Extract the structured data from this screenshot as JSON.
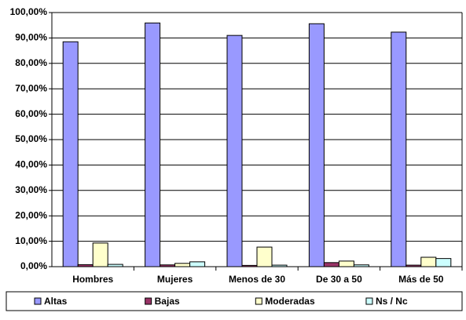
{
  "chart_data": {
    "type": "bar",
    "categories": [
      "Hombres",
      "Mujeres",
      "Menos de 30",
      "De 30 a 50",
      "Más de 50"
    ],
    "series": [
      {
        "name": "Altas",
        "color": "#9999ff",
        "values": [
          88.5,
          95.9,
          91.0,
          95.6,
          92.3
        ]
      },
      {
        "name": "Bajas",
        "color": "#993366",
        "values": [
          0.8,
          0.7,
          0.5,
          1.6,
          0.6
        ]
      },
      {
        "name": "Moderadas",
        "color": "#ffffcc",
        "values": [
          9.3,
          1.3,
          7.7,
          2.2,
          3.7
        ]
      },
      {
        "name": "Ns / Nc",
        "color": "#ccffff",
        "values": [
          0.9,
          1.9,
          0.6,
          0.7,
          3.2
        ]
      }
    ],
    "ylim": [
      0,
      100
    ],
    "yticks": [
      {
        "value": 0,
        "label": "0,00%"
      },
      {
        "value": 10,
        "label": "10,00%"
      },
      {
        "value": 20,
        "label": "20,00%"
      },
      {
        "value": 30,
        "label": "30,00%"
      },
      {
        "value": 40,
        "label": "40,00%"
      },
      {
        "value": 50,
        "label": "50,00%"
      },
      {
        "value": 60,
        "label": "60,00%"
      },
      {
        "value": 70,
        "label": "70,00%"
      },
      {
        "value": 80,
        "label": "80,00%"
      },
      {
        "value": 90,
        "label": "90,00%"
      },
      {
        "value": 100,
        "label": "100,00%"
      }
    ],
    "grid": true,
    "legend": "bottom"
  }
}
